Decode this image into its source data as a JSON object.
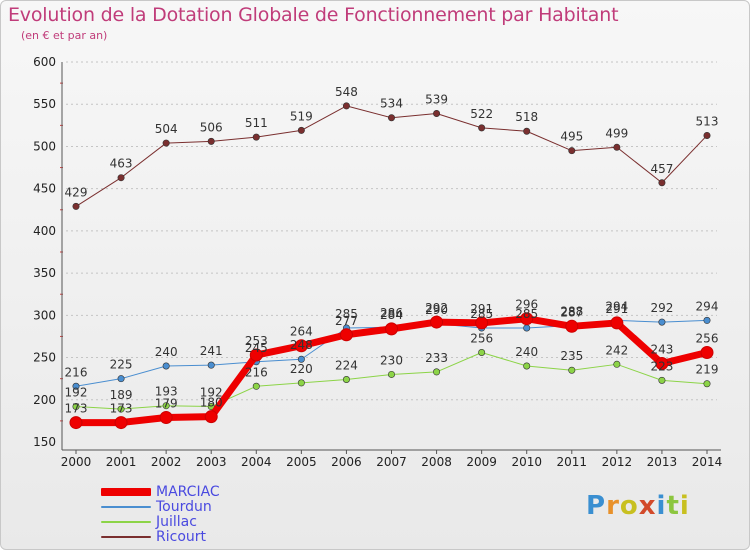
{
  "header": {
    "title": "Evolution de la Dotation Globale de Fonctionnement par Habitant",
    "subtitle": "(en € et par an)"
  },
  "logo": {
    "text": "Proxiti",
    "colors": [
      "#3a8fd1",
      "#e8912b",
      "#c8c020",
      "#d24a2a",
      "#3a8fd1",
      "#8cc63f",
      "#c8c020"
    ]
  },
  "chart_data": {
    "type": "line",
    "title": "Evolution de la Dotation Globale de Fonctionnement par Habitant",
    "subtitle": "(en € et par an)",
    "xlabel": "",
    "ylabel": "",
    "categories": [
      "2000",
      "2001",
      "2002",
      "2003",
      "2004",
      "2005",
      "2006",
      "2007",
      "2008",
      "2009",
      "2010",
      "2011",
      "2012",
      "2013",
      "2014"
    ],
    "ylim": [
      150,
      600
    ],
    "yticks": [
      150,
      200,
      250,
      300,
      350,
      400,
      450,
      500,
      550,
      600
    ],
    "grid": "horizontal dashed",
    "legend_position": "bottom-left",
    "series": [
      {
        "name": "Ricourt",
        "color": "#7a2f2f",
        "values": [
          429,
          463,
          504,
          506,
          511,
          519,
          548,
          534,
          539,
          522,
          518,
          495,
          499,
          457,
          513
        ]
      },
      {
        "name": "Tourdun",
        "color": "#4a8ed0",
        "values": [
          216,
          225,
          240,
          241,
          245,
          248,
          285,
          286,
          290,
          285,
          285,
          288,
          294,
          292,
          294
        ]
      },
      {
        "name": "Juillac",
        "color": "#8cd447",
        "values": [
          192,
          189,
          193,
          192,
          216,
          220,
          224,
          230,
          233,
          256,
          240,
          235,
          242,
          223,
          219
        ]
      },
      {
        "name": "MARCIAC",
        "color": "#ee0000",
        "values": [
          173,
          173,
          179,
          180,
          253,
          264,
          277,
          284,
          292,
          291,
          296,
          287,
          291,
          243,
          256
        ]
      }
    ]
  },
  "legend": [
    {
      "name": "MARCIAC",
      "color": "#ee0000",
      "text_color": "#4a4ae0"
    },
    {
      "name": "Tourdun",
      "color": "#4a8ed0",
      "text_color": "#4a4ae0"
    },
    {
      "name": "Juillac",
      "color": "#8cd447",
      "text_color": "#4a4ae0"
    },
    {
      "name": "Ricourt",
      "color": "#7a2f2f",
      "text_color": "#4a4ae0"
    }
  ]
}
